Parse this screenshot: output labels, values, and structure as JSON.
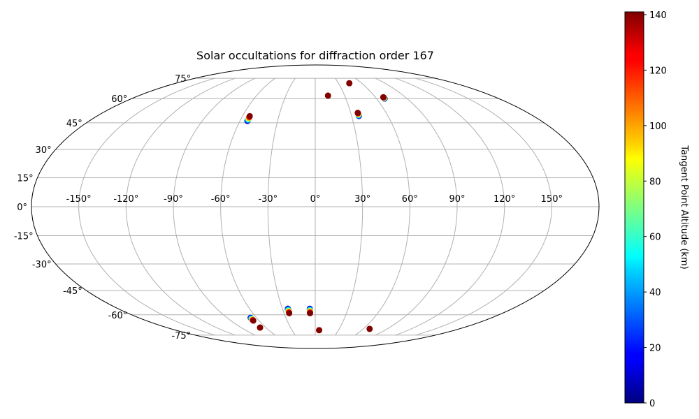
{
  "chart_data": {
    "type": "scatter",
    "projection": "mollweide",
    "title": "Solar occultations for diffraction order 167",
    "grid": true,
    "lon_ticks": [
      "-150°",
      "-120°",
      "-90°",
      "-60°",
      "-30°",
      "0°",
      "30°",
      "60°",
      "90°",
      "120°",
      "150°"
    ],
    "lat_ticks": [
      "75°",
      "60°",
      "45°",
      "30°",
      "15°",
      "0°",
      "-15°",
      "-30°",
      "-45°",
      "-60°",
      "-75°"
    ],
    "colorbar": {
      "label": "Tangent Point Altitude (km)",
      "ticks": [
        "0",
        "20",
        "40",
        "60",
        "80",
        "100",
        "120",
        "140"
      ],
      "range": [
        0,
        141
      ],
      "colormap": "jet"
    },
    "groups": [
      {
        "lon": -54,
        "lat_start": 46,
        "lat_end": 49,
        "dir": "north"
      },
      {
        "lon": 13,
        "lat_start": 62,
        "lat_end": 62,
        "dir": "north"
      },
      {
        "lon": 44,
        "lat_start": 71,
        "lat_end": 71,
        "dir": "north"
      },
      {
        "lon": 36,
        "lat_start": 49,
        "lat_end": 51,
        "dir": "south"
      },
      {
        "lon": 68,
        "lat_start": 60,
        "lat_end": 61,
        "dir": "south"
      },
      {
        "lon": -66,
        "lat_start": -62,
        "lat_end": -64,
        "dir": "south"
      },
      {
        "lon": -67,
        "lat_start": -69,
        "lat_end": -69,
        "dir": "south"
      },
      {
        "lon": -25,
        "lat_start": -56,
        "lat_end": -59,
        "dir": "south"
      },
      {
        "lon": -5,
        "lat_start": -56,
        "lat_end": -59,
        "dir": "south"
      },
      {
        "lon": 5,
        "lat_start": -71,
        "lat_end": -71,
        "dir": "north"
      },
      {
        "lon": 68,
        "lat_start": -70,
        "lat_end": -70,
        "dir": "south"
      }
    ]
  }
}
